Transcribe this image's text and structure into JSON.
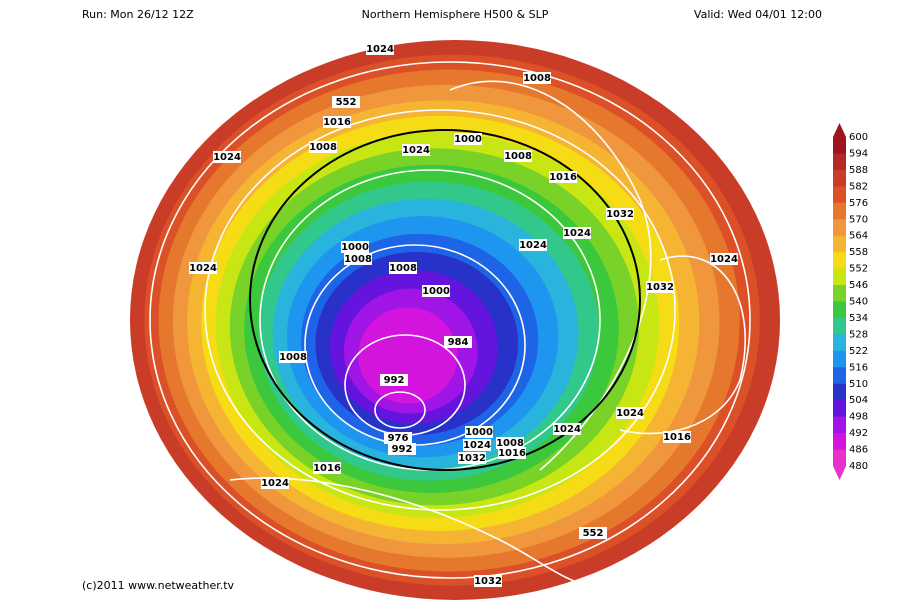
{
  "header": {
    "run": "Run: Mon 26/12 12Z",
    "title": "Northern Hemisphere H500 & SLP",
    "valid": "Valid: Wed 04/01 12:00"
  },
  "colorbar": {
    "labels": [
      600,
      594,
      588,
      582,
      576,
      570,
      564,
      558,
      552,
      546,
      540,
      534,
      528,
      522,
      516,
      510,
      504,
      498,
      492,
      486,
      480
    ],
    "colors": [
      "#a0141e",
      "#b42828",
      "#c83c28",
      "#dc5028",
      "#e6782d",
      "#f0963c",
      "#f5b432",
      "#f5dc14",
      "#c8e614",
      "#78d228",
      "#3cc83c",
      "#32c88c",
      "#28b4dc",
      "#1e96f0",
      "#1e64e6",
      "#2832c8",
      "#6414dc",
      "#a014e6",
      "#d214dc",
      "#e632c8"
    ]
  },
  "contour_labels": [
    1024,
    1008,
    552,
    1016,
    1000,
    1024,
    1008,
    1024,
    1008,
    1016,
    1032,
    1024,
    1000,
    1008,
    1024,
    1024,
    1008,
    1024,
    1000,
    1032,
    984,
    1008,
    992,
    1024,
    1024,
    1016,
    1000,
    976,
    1024,
    1008,
    992,
    1016,
    1032,
    1016,
    1024,
    552,
    1032
  ],
  "footer": "(c)2011 www.netweather.tv"
}
